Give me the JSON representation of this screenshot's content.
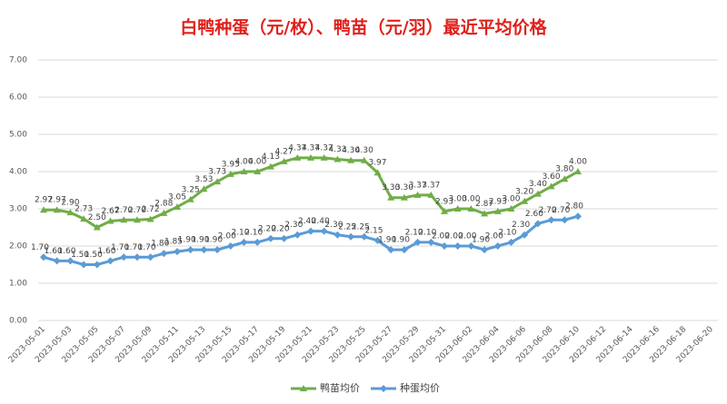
{
  "chart_data": {
    "type": "line",
    "title": "白鸭种蛋（元/枚）、鸭苗（元/羽）最近平均价格",
    "categories": [
      "2023-05-01",
      null,
      "2023-05-03",
      null,
      "2023-05-05",
      null,
      "2023-05-07",
      null,
      "2023-05-09",
      null,
      "2023-05-11",
      null,
      "2023-05-13",
      null,
      "2023-05-15",
      null,
      "2023-05-17",
      null,
      "2023-05-19",
      null,
      "2023-05-21",
      null,
      "2023-05-23",
      null,
      "2023-05-25",
      null,
      "2023-05-27",
      null,
      "2023-05-29",
      null,
      "2023-05-31",
      null,
      "2023-06-02",
      null,
      "2023-06-04",
      null,
      "2023-06-06",
      null,
      "2023-06-08",
      null,
      "2023-06-10",
      null,
      "2023-06-12",
      null,
      "2023-06-14",
      null,
      "2023-06-16",
      null,
      "2023-06-18",
      null,
      "2023-06-20"
    ],
    "series": [
      {
        "name": "鸭苗均价",
        "color": "#70ad47",
        "values": [
          2.97,
          2.97,
          2.9,
          2.73,
          2.5,
          2.67,
          2.7,
          2.7,
          2.72,
          2.88,
          3.05,
          3.25,
          3.53,
          3.73,
          3.93,
          4,
          4,
          4.13,
          4.27,
          4.37,
          4.37,
          4.37,
          4.33,
          4.3,
          4.3,
          3.97,
          3.3,
          3.3,
          3.37,
          3.37,
          2.93,
          3,
          3,
          2.87,
          2.93,
          3,
          3.2,
          3.4,
          3.6,
          3.8,
          4,
          null,
          null,
          null,
          null,
          null,
          null,
          null,
          null,
          null,
          null
        ],
        "value_labels": [
          "2.97",
          "2.97",
          "2.90",
          "2.73",
          "2.50",
          "2.67",
          "2.70",
          "2.70",
          "2.72",
          "2.88",
          "3.05",
          "3.25",
          "3.53",
          "3.73",
          "3.93",
          "4.00",
          "4.00",
          "4.13",
          "4.27",
          "4.37",
          "4.37",
          "4.37",
          "4.33",
          "4.30",
          "4.30",
          "3.97",
          "3.30",
          "3.30",
          "3.37",
          "3.37",
          "2.93",
          "3.00",
          "3.00",
          "2.87",
          "2.93",
          "3.00",
          "3.20",
          "3.40",
          "3.60",
          "3.80",
          "4.00",
          null,
          null,
          null,
          null,
          null,
          null,
          null,
          null,
          null,
          null
        ]
      },
      {
        "name": "种蛋均价",
        "color": "#5b9bd5",
        "values": [
          1.7,
          1.6,
          1.6,
          1.5,
          1.5,
          1.6,
          1.7,
          1.7,
          1.7,
          1.8,
          1.85,
          1.9,
          1.9,
          1.9,
          2,
          2.1,
          2.1,
          2.2,
          2.2,
          2.3,
          2.4,
          2.4,
          2.3,
          2.25,
          2.25,
          2.15,
          1.9,
          1.9,
          2.1,
          2.1,
          2,
          2,
          2,
          1.9,
          2,
          2.1,
          2.3,
          2.6,
          2.7,
          2.7,
          2.8,
          null,
          null,
          null,
          null,
          null,
          null,
          null,
          null,
          null,
          null
        ],
        "value_labels": [
          "1.70",
          "1.60",
          "1.60",
          "1.50",
          "1.50",
          "1.60",
          "1.70",
          "1.70",
          "1.70",
          "1.80",
          "1.85",
          "1.90",
          "1.90",
          "1.90",
          "2.00",
          "2.10",
          "2.10",
          "2.20",
          "2.20",
          "2.30",
          "2.40",
          "2.40",
          "2.30",
          "2.25",
          "2.25",
          "2.15",
          "1.90",
          "1.90",
          "2.10",
          "2.10",
          "2.00",
          "2.00",
          "2.00",
          "1.90",
          "2.00",
          "2.10",
          "2.30",
          "2.60",
          "2.70",
          "2.70",
          "2.80",
          null,
          null,
          null,
          null,
          null,
          null,
          null,
          null,
          null,
          null
        ]
      }
    ],
    "ylim": [
      0,
      7
    ],
    "yticks": [
      {
        "value": 0,
        "label": "0.00"
      },
      {
        "value": 1,
        "label": "1.00"
      },
      {
        "value": 2,
        "label": "2.00"
      },
      {
        "value": 3,
        "label": "3.00"
      },
      {
        "value": 4,
        "label": "4.00"
      },
      {
        "value": 5,
        "label": "5.00"
      },
      {
        "value": 6,
        "label": "6.00"
      },
      {
        "value": 7,
        "label": "7.00"
      }
    ],
    "grid": true,
    "legend": "bottom"
  }
}
